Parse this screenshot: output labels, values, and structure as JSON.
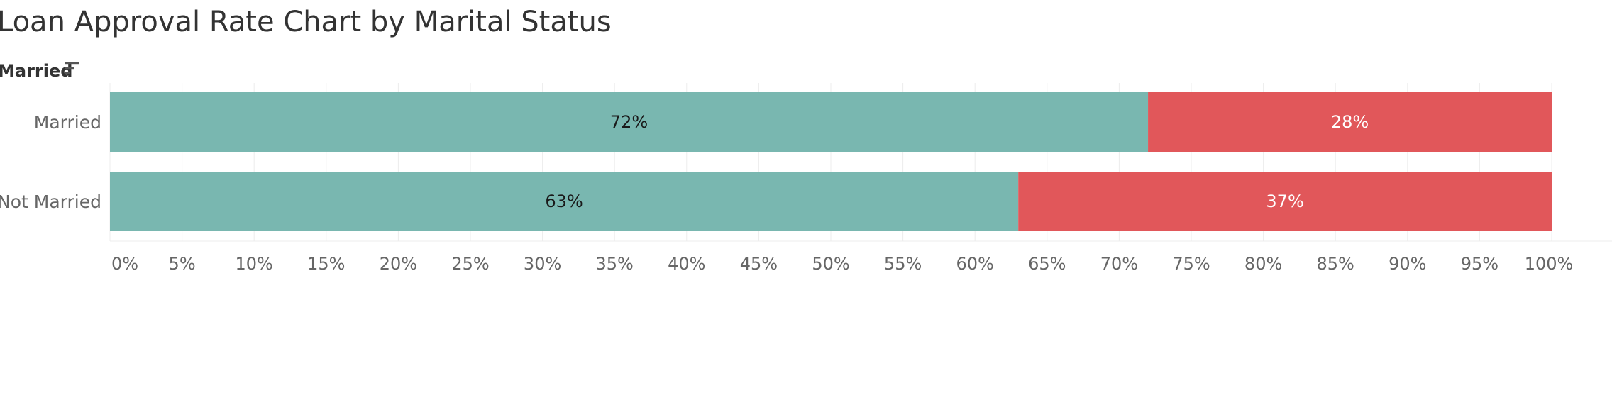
{
  "header": {
    "title": "Loan Approval Rate Chart by Marital Status",
    "row_field_label": "Married"
  },
  "colors": {
    "approved": "#79b7b0",
    "rejected": "#e1575a",
    "approved_label": "#1a1a1a",
    "rejected_label": "#ffffff"
  },
  "icons": {
    "sort": "sort-descending-icon"
  },
  "chart_data": {
    "type": "bar",
    "orientation": "horizontal",
    "stacked": true,
    "title": "Loan Approval Rate Chart by Marital Status",
    "categories": [
      "Married",
      "Not Married"
    ],
    "series": [
      {
        "values": [
          72,
          63
        ],
        "labels": [
          "72%",
          "63%"
        ]
      },
      {
        "values": [
          28,
          37
        ],
        "labels": [
          "28%",
          "37%"
        ]
      }
    ],
    "xlim": [
      0,
      100
    ],
    "xticks": [
      0,
      5,
      10,
      15,
      20,
      25,
      30,
      35,
      40,
      45,
      50,
      55,
      60,
      65,
      70,
      75,
      80,
      85,
      90,
      95,
      100
    ],
    "xtick_labels": [
      "0%",
      "5%",
      "10%",
      "15%",
      "20%",
      "25%",
      "30%",
      "35%",
      "40%",
      "45%",
      "50%",
      "55%",
      "60%",
      "65%",
      "70%",
      "75%",
      "80%",
      "85%",
      "90%",
      "95%",
      "100%"
    ],
    "grid": true,
    "legend": "none"
  }
}
